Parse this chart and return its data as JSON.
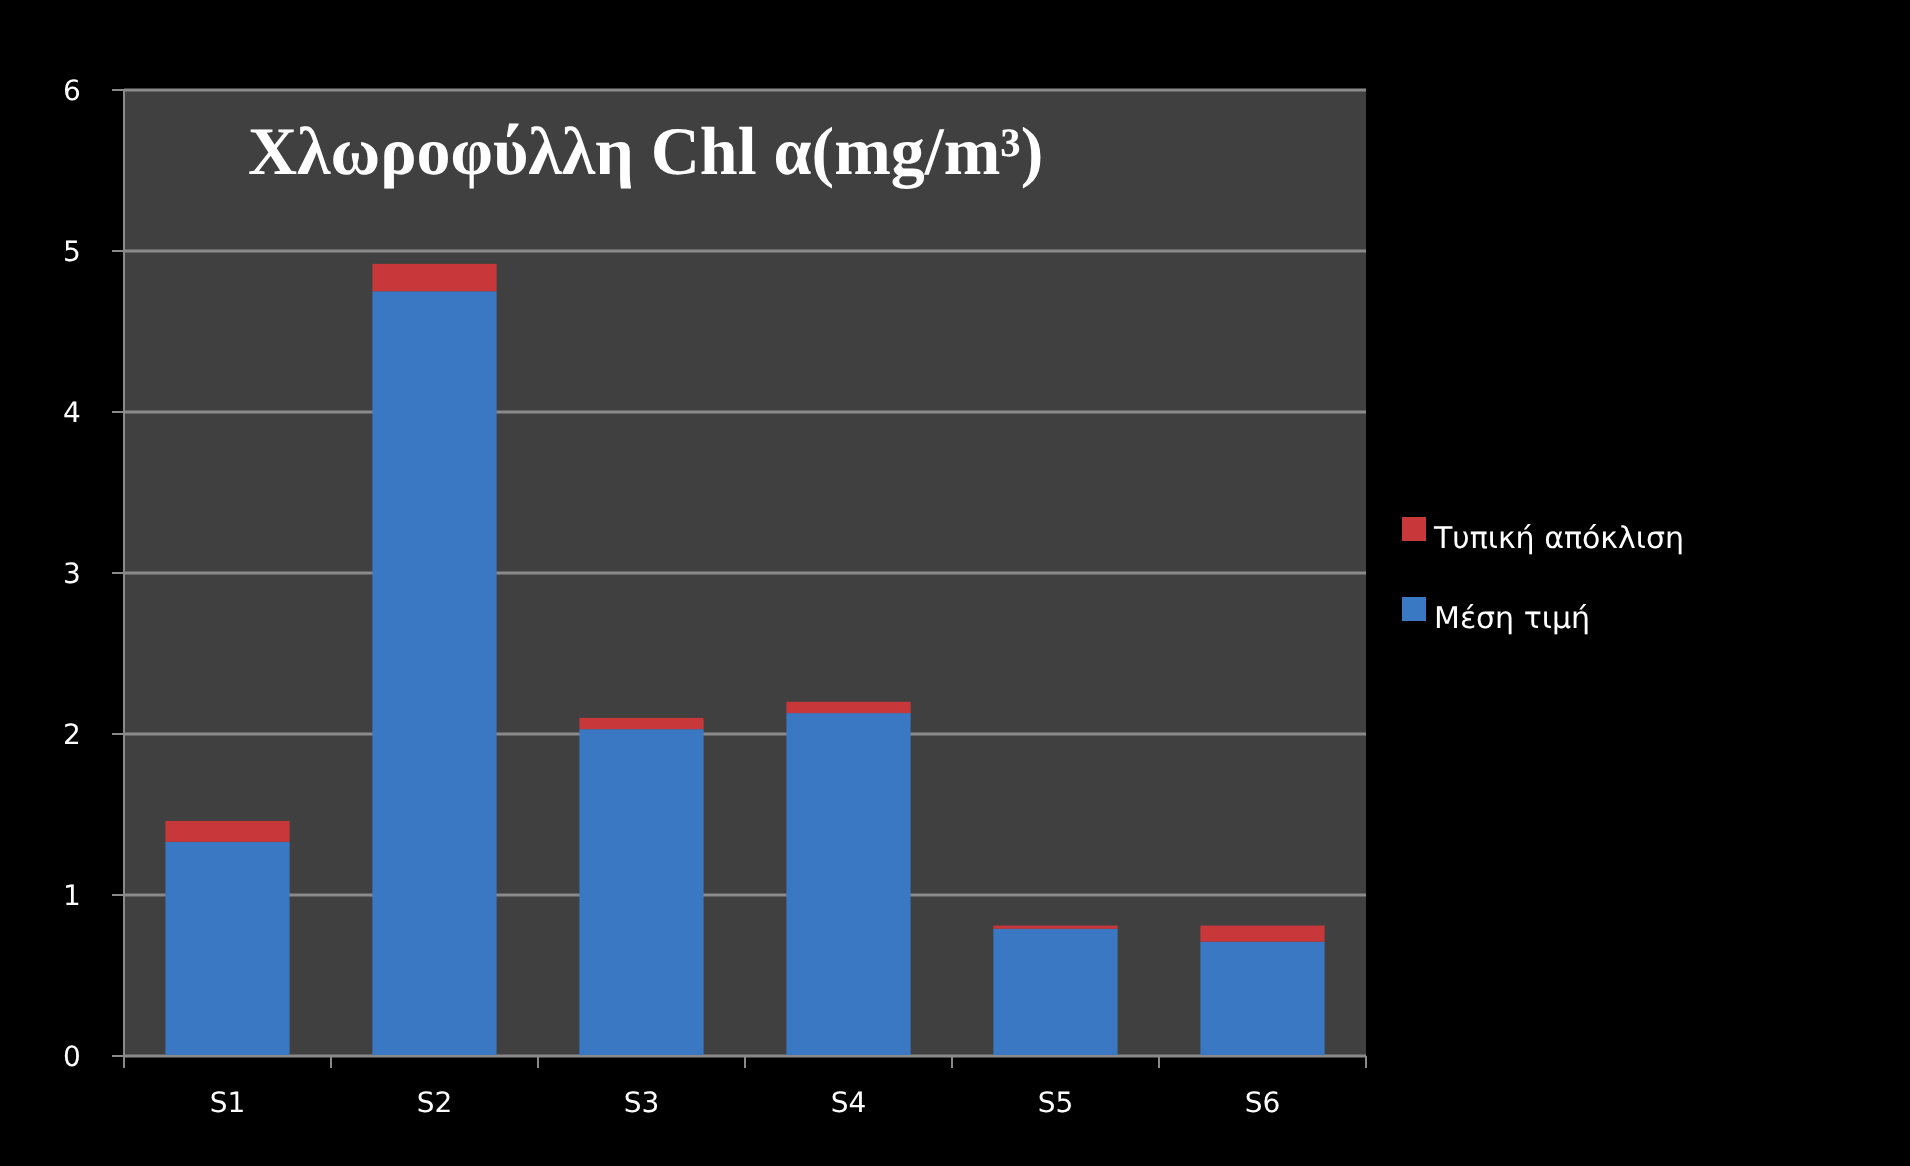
{
  "chart_data": {
    "type": "bar",
    "title": "Χλωροφύλλη Chl α(mg/m³)",
    "categories": [
      "S1",
      "S2",
      "S3",
      "S4",
      "S5",
      "S6"
    ],
    "stacked": true,
    "series": [
      {
        "name": "Μέση τιμή",
        "color": "#3a78c4",
        "values": [
          1.33,
          4.75,
          2.03,
          2.13,
          0.79,
          0.71
        ]
      },
      {
        "name": "Τυπική απόκλιση",
        "color": "#c8383a",
        "values": [
          0.13,
          0.17,
          0.07,
          0.07,
          0.02,
          0.1
        ]
      }
    ],
    "ylim": [
      0,
      6
    ],
    "yticks": [
      0,
      1,
      2,
      3,
      4,
      5,
      6
    ],
    "grid": "y",
    "legend": "right"
  }
}
